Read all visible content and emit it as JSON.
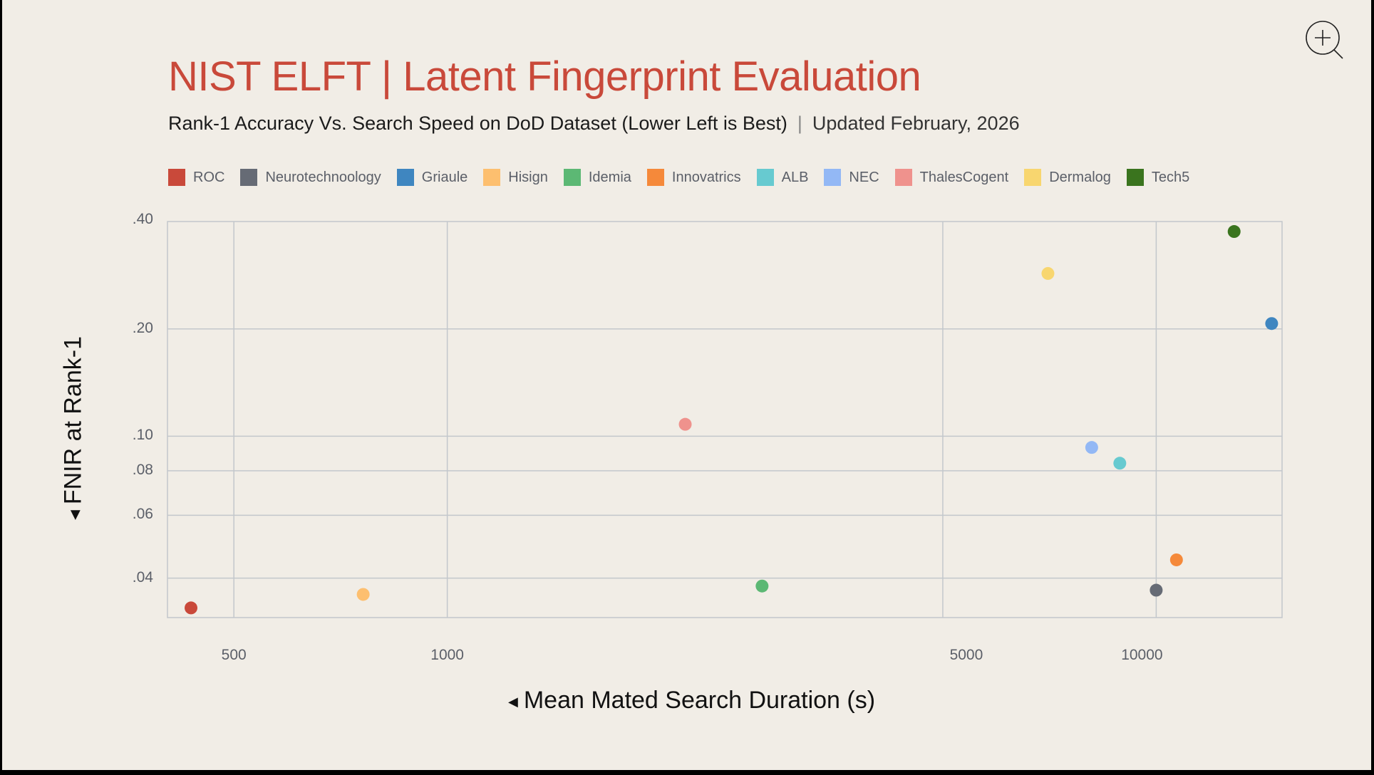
{
  "header": {
    "title": "NIST ELFT | Latent Fingerprint Evaluation",
    "subtitle": "Rank-1 Accuracy Vs. Search Speed on DoD Dataset (Lower Left is Best)",
    "separator": "|",
    "updated": "Updated February, 2026"
  },
  "toolbar": {
    "zoom_icon": "zoom-in-icon"
  },
  "legend": [
    {
      "name": "ROC",
      "color": "#c9493a"
    },
    {
      "name": "Neurotechnoology",
      "color": "#666b75"
    },
    {
      "name": "Griaule",
      "color": "#3f86c0"
    },
    {
      "name": "Hisign",
      "color": "#fdbf6f"
    },
    {
      "name": "Idemia",
      "color": "#5cb874"
    },
    {
      "name": "Innovatrics",
      "color": "#f5893a"
    },
    {
      "name": "ALB",
      "color": "#67cad0"
    },
    {
      "name": "NEC",
      "color": "#93b8f5"
    },
    {
      "name": "ThalesCogent",
      "color": "#ef928d"
    },
    {
      "name": "Dermalog",
      "color": "#f8d66f"
    },
    {
      "name": "Tech5",
      "color": "#3a741e"
    }
  ],
  "axes": {
    "xlabel": "Mean Mated Search Duration (s)",
    "ylabel": "FNIR at Rank-1",
    "arrow": "◀",
    "yticks": [
      ".40",
      ".20",
      ".10",
      ".08",
      ".06",
      ".04"
    ],
    "xticks": [
      "500",
      "1000",
      "5000",
      "10000"
    ]
  },
  "chart_data": {
    "type": "scatter",
    "title": "NIST ELFT | Latent Fingerprint Evaluation",
    "subtitle": "Rank-1 Accuracy Vs. Search Speed on DoD Dataset (Lower Left is Best) | Updated February, 2026",
    "xlabel": "Mean Mated Search Duration (s)",
    "ylabel": "FNIR at Rank-1",
    "xscale": "log",
    "yscale": "log",
    "xlim": [
      403,
      15050
    ],
    "ylim": [
      0.031,
      0.4
    ],
    "xticks": [
      500,
      1000,
      5000,
      10000
    ],
    "yticks": [
      0.04,
      0.06,
      0.08,
      0.1,
      0.2,
      0.4
    ],
    "grid": true,
    "legend_position": "top",
    "series": [
      {
        "name": "ROC",
        "color": "#c9493a",
        "x": 435,
        "y": 0.033
      },
      {
        "name": "Neurotechnoology",
        "color": "#666b75",
        "x": 10000,
        "y": 0.037
      },
      {
        "name": "Griaule",
        "color": "#3f86c0",
        "x": 14550,
        "y": 0.207
      },
      {
        "name": "Hisign",
        "color": "#fdbf6f",
        "x": 761,
        "y": 0.036
      },
      {
        "name": "Idemia",
        "color": "#5cb874",
        "x": 2780,
        "y": 0.038
      },
      {
        "name": "Innovatrics",
        "color": "#f5893a",
        "x": 10680,
        "y": 0.045
      },
      {
        "name": "ALB",
        "color": "#67cad0",
        "x": 8885,
        "y": 0.084
      },
      {
        "name": "NEC",
        "color": "#93b8f5",
        "x": 8110,
        "y": 0.093
      },
      {
        "name": "ThalesCogent",
        "color": "#ef928d",
        "x": 2166,
        "y": 0.108
      },
      {
        "name": "Dermalog",
        "color": "#f8d66f",
        "x": 7035,
        "y": 0.286
      },
      {
        "name": "Tech5",
        "color": "#3a741e",
        "x": 12880,
        "y": 0.375
      }
    ]
  }
}
